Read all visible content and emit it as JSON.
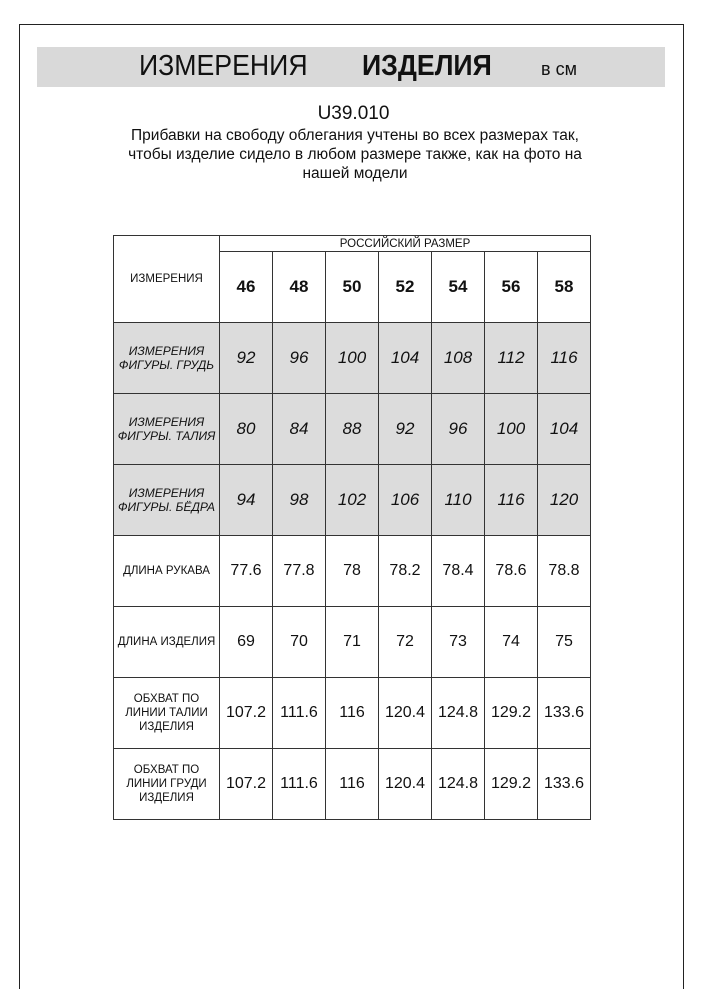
{
  "header": {
    "title_regular": "ИЗМЕРЕНИЯ",
    "title_bold": "ИЗДЕЛИЯ",
    "unit": "в см"
  },
  "product_code": "U39.010",
  "note_lines": [
    "Прибавки на свободу облегания учтены во всех размерах так,",
    "чтобы изделие сидело в любом размере также, как на фото на",
    "нашей модели"
  ],
  "table": {
    "corner_label": "ИЗМЕРЕНИЯ",
    "group_label": "РОССИЙСКИЙ РАЗМЕР",
    "sizes": [
      "46",
      "48",
      "50",
      "52",
      "54",
      "56",
      "58"
    ],
    "rows": [
      {
        "label": [
          "ИЗМЕРЕНИЯ",
          "ФИГУРЫ. ГРУДЬ"
        ],
        "shaded": true,
        "values": [
          "92",
          "96",
          "100",
          "104",
          "108",
          "112",
          "116"
        ]
      },
      {
        "label": [
          "ИЗМЕРЕНИЯ",
          "ФИГУРЫ. ТАЛИЯ"
        ],
        "shaded": true,
        "values": [
          "80",
          "84",
          "88",
          "92",
          "96",
          "100",
          "104"
        ]
      },
      {
        "label": [
          "ИЗМЕРЕНИЯ",
          "ФИГУРЫ. БЁДРА"
        ],
        "shaded": true,
        "values": [
          "94",
          "98",
          "102",
          "106",
          "110",
          "116",
          "120"
        ]
      },
      {
        "label": [
          "ДЛИНА РУКАВА"
        ],
        "shaded": false,
        "values": [
          "77.6",
          "77.8",
          "78",
          "78.2",
          "78.4",
          "78.6",
          "78.8"
        ]
      },
      {
        "label": [
          "ДЛИНА ИЗДЕЛИЯ"
        ],
        "shaded": false,
        "values": [
          "69",
          "70",
          "71",
          "72",
          "73",
          "74",
          "75"
        ]
      },
      {
        "label": [
          "ОБХВАТ ПО",
          "ЛИНИИ ТАЛИИ",
          "ИЗДЕЛИЯ"
        ],
        "shaded": false,
        "values": [
          "107.2",
          "111.6",
          "116",
          "120.4",
          "124.8",
          "129.2",
          "133.6"
        ]
      },
      {
        "label": [
          "ОБХВАТ ПО",
          "ЛИНИИ ГРУДИ",
          "ИЗДЕЛИЯ"
        ],
        "shaded": false,
        "values": [
          "107.2",
          "111.6",
          "116",
          "120.4",
          "124.8",
          "129.2",
          "133.6"
        ]
      }
    ]
  },
  "colors": {
    "band": "#d9d9d9",
    "shaded_row": "#dcdcdc"
  }
}
